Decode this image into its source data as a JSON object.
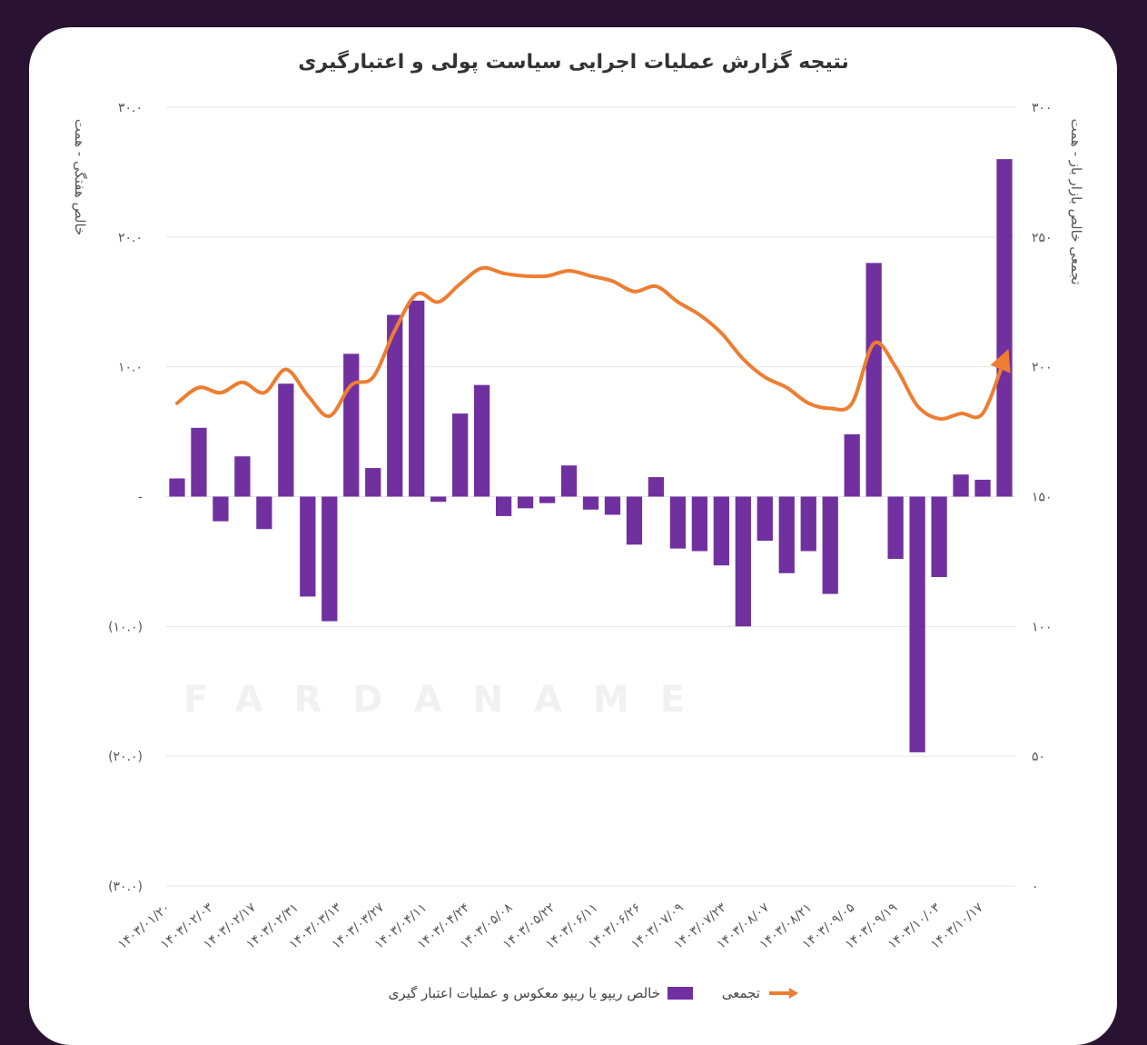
{
  "chart_data": {
    "type": "bar+line",
    "title": "نتیجه گزارش عملیات اجرایی سیاست پولی و اعتبارگیری",
    "ylabel_left": "خالص هفتگی - همت",
    "ylabel_right": "تجمعی خالص بازار باز - همت",
    "ylim_left": [
      -30,
      30
    ],
    "ylim_right": [
      0,
      300
    ],
    "left_ticks": [
      "۳۰.۰",
      "۲۰.۰",
      "۱۰.۰",
      "-",
      "(۱۰.۰)",
      "(۲۰.۰)",
      "(۳۰.۰)"
    ],
    "right_ticks": [
      "۳۰۰",
      "۲۵۰",
      "۲۰۰",
      "۱۵۰",
      "۱۰۰",
      "۵۰",
      "۰"
    ],
    "x_tick_labels": [
      "۱۴۰۳/۰۱/۲۰",
      "۱۴۰۳/۰۲/۰۳",
      "۱۴۰۳/۰۲/۱۷",
      "۱۴۰۳/۰۲/۳۱",
      "۱۴۰۳/۰۳/۱۳",
      "۱۴۰۳/۰۳/۲۷",
      "۱۴۰۳/۰۴/۱۱",
      "۱۴۰۳/۰۴/۲۴",
      "۱۴۰۳/۰۵/۰۸",
      "۱۴۰۳/۰۵/۲۲",
      "۱۴۰۳/۰۶/۱۱",
      "۱۴۰۳/۰۶/۲۶",
      "۱۴۰۳/۰۷/۰۹",
      "۱۴۰۳/۰۷/۲۳",
      "۱۴۰۳/۰۸/۰۷",
      "۱۴۰۳/۰۸/۲۱",
      "۱۴۰۳/۰۹/۰۵",
      "۱۴۰۳/۰۹/۱۹",
      "۱۴۰۳/۱۰/۰۳",
      "۱۴۰۳/۱۰/۱۷"
    ],
    "series": [
      {
        "name": "خالص ریپو یا ریپو معکوس و عملیات اعتبار گیری",
        "type": "bar",
        "axis": "left",
        "color": "#7030a0",
        "values": [
          1.4,
          5.3,
          -1.9,
          3.1,
          -2.5,
          8.7,
          -7.7,
          -9.6,
          11.0,
          2.2,
          14.0,
          15.1,
          -0.4,
          6.4,
          8.6,
          -1.5,
          -0.9,
          -0.5,
          2.4,
          -1.0,
          -1.4,
          -3.7,
          1.5,
          -4.0,
          -4.2,
          -5.3,
          -10.0,
          -3.4,
          -5.9,
          -4.2,
          -7.5,
          4.8,
          18.0,
          -4.8,
          -19.7,
          -6.2,
          1.7,
          1.3,
          26.0
        ]
      },
      {
        "name": "تجمعی",
        "type": "line",
        "axis": "right",
        "color": "#ed7d31",
        "values": [
          186,
          192,
          190,
          194,
          190,
          199,
          189,
          181,
          193,
          196,
          214,
          228,
          225,
          232,
          238,
          236,
          235,
          235,
          237,
          235,
          233,
          229,
          231,
          225,
          220,
          213,
          203,
          196,
          192,
          186,
          184,
          186,
          209,
          200,
          185,
          180,
          182,
          182,
          203
        ]
      }
    ],
    "grid": true,
    "legend_position": "bottom"
  },
  "watermark": {
    "text": "FARDANAME"
  }
}
